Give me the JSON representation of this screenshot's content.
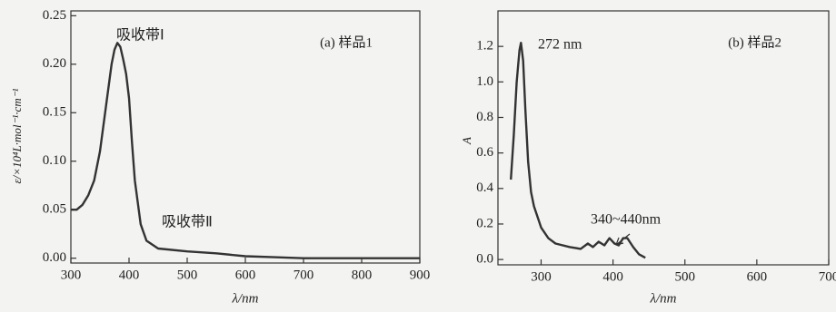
{
  "chart_data": [
    {
      "type": "line",
      "panel_label": "(a) 样品1",
      "x_label": "λ/nm",
      "y_label": "ε/×10⁴L·mol⁻¹·cm⁻¹",
      "annotations": [
        "吸收带Ⅰ",
        "吸收带Ⅱ"
      ],
      "xlim": [
        300,
        900
      ],
      "xticks": [
        300,
        400,
        500,
        600,
        700,
        800,
        900
      ],
      "ylim": [
        -0.005,
        0.255
      ],
      "yticks": [
        {
          "value": 0,
          "label": "0.00"
        },
        0.05,
        {
          "value": 0.1,
          "label": "0.10"
        },
        0.15,
        {
          "value": 0.2,
          "label": "0.20"
        },
        0.25
      ],
      "color": "#333333",
      "x": [
        300,
        310,
        320,
        330,
        340,
        350,
        360,
        370,
        375,
        380,
        385,
        390,
        395,
        400,
        405,
        410,
        420,
        430,
        450,
        500,
        550,
        600,
        650,
        700,
        800,
        900
      ],
      "values": [
        0.05,
        0.05,
        0.055,
        0.065,
        0.08,
        0.11,
        0.155,
        0.2,
        0.215,
        0.222,
        0.218,
        0.205,
        0.19,
        0.165,
        0.12,
        0.08,
        0.035,
        0.018,
        0.01,
        0.007,
        0.005,
        0.002,
        0.001,
        0.0,
        0.0,
        0.0
      ]
    },
    {
      "type": "line",
      "panel_label": "(b) 样品2",
      "x_label": "λ/nm",
      "y_label": "A",
      "annotations": [
        "272 nm",
        "340~440nm"
      ],
      "xlim": [
        240,
        700
      ],
      "xticks": [
        300,
        400,
        500,
        600,
        700
      ],
      "ylim": [
        -0.03,
        1.4
      ],
      "yticks": [
        {
          "value": 0,
          "label": "0.0"
        },
        0.2,
        0.4,
        0.6,
        0.8,
        {
          "value": 1,
          "label": "1.0"
        },
        1.2
      ],
      "color": "#333333",
      "x": [
        258,
        262,
        266,
        270,
        272,
        275,
        278,
        282,
        286,
        290,
        300,
        310,
        320,
        340,
        355,
        365,
        372,
        380,
        388,
        395,
        402,
        408,
        414,
        420,
        428,
        436,
        445
      ],
      "values": [
        0.45,
        0.7,
        1.0,
        1.18,
        1.22,
        1.12,
        0.85,
        0.55,
        0.38,
        0.3,
        0.18,
        0.12,
        0.09,
        0.07,
        0.06,
        0.09,
        0.07,
        0.1,
        0.08,
        0.12,
        0.09,
        0.08,
        0.12,
        0.12,
        0.07,
        0.03,
        0.01
      ]
    }
  ]
}
